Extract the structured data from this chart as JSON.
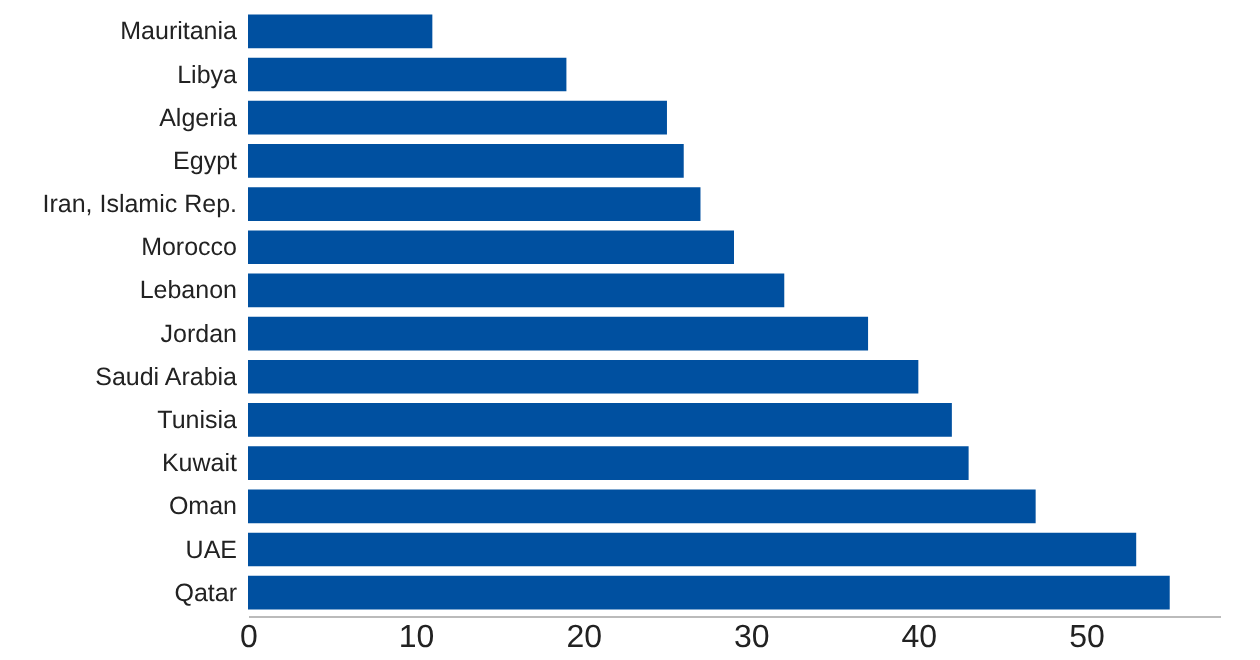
{
  "chart_data": {
    "type": "bar",
    "orientation": "horizontal",
    "categories": [
      "Mauritania",
      "Libya",
      "Algeria",
      "Egypt",
      "Iran, Islamic Rep.",
      "Morocco",
      "Lebanon",
      "Jordan",
      "Saudi Arabia",
      "Tunisia",
      "Kuwait",
      "Oman",
      "UAE",
      "Qatar"
    ],
    "values": [
      11,
      19,
      25,
      26,
      27,
      29,
      32,
      37,
      40,
      42,
      43,
      47,
      53,
      55
    ],
    "color": "#0050a0",
    "xlim": [
      0,
      58
    ],
    "xticks": [
      0,
      10,
      20,
      30,
      40,
      50
    ],
    "grid": false
  }
}
